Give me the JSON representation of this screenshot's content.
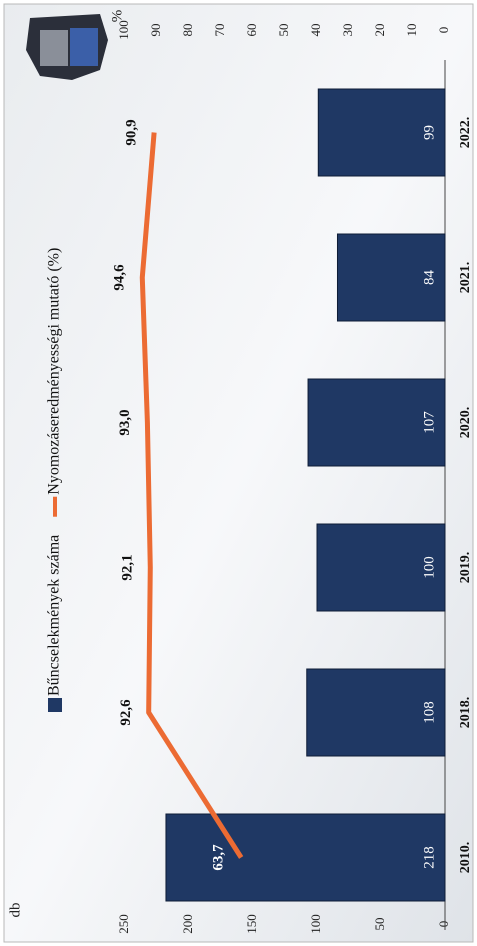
{
  "chart_data": {
    "type": "bar-line",
    "y_label": "db",
    "y2_label": "%",
    "categories": [
      "2010.",
      "2018.",
      "2019.",
      "2020.",
      "2021.",
      "2022."
    ],
    "series": [
      {
        "name": "Bűncselekmények száma",
        "type": "bar",
        "color": "#1f3864",
        "values": [
          218,
          108,
          100,
          107,
          84,
          99
        ]
      },
      {
        "name": "Nyomozáseredményességi mutató (%)",
        "type": "line",
        "axis": "y2",
        "color": "#ec6b33",
        "values": [
          63.7,
          92.6,
          92.1,
          93.0,
          94.6,
          90.9
        ],
        "value_labels": [
          "63,7",
          "92,6",
          "92,1",
          "93,0",
          "94,6",
          "90,9"
        ]
      }
    ],
    "ylim": [
      0,
      250
    ],
    "yticks": [
      0,
      50,
      100,
      150,
      200,
      250
    ],
    "y2lim": [
      0,
      100
    ],
    "y2ticks": [
      0,
      10,
      20,
      30,
      40,
      50,
      60,
      70,
      80,
      90,
      100
    ],
    "grid": false
  }
}
